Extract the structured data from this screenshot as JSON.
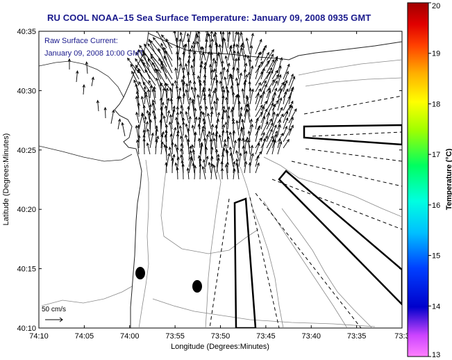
{
  "title": "RU COOL  NOAA–15  Sea Surface Temperature:  January 09, 2008 0935 GMT",
  "annotation": {
    "line1": "Raw Surface Current:",
    "line2": "January 09, 2008 10:00 GMT"
  },
  "scale_label": "50 cm/s",
  "chart_data": {
    "type": "map",
    "xlabel": "Longitude (Degrees:Minutes)",
    "ylabel": "Latitude (Degrees:Minutes)",
    "x_ticks": [
      "74:10",
      "74:05",
      "74:00",
      "73:55",
      "73:50",
      "73:45",
      "73:40",
      "73:35",
      "73:3"
    ],
    "y_ticks": [
      "40:10",
      "40:15",
      "40:20",
      "40:25",
      "40:30",
      "40:35"
    ],
    "x_range_minutes_west": [
      70,
      30
    ],
    "y_range_minutes_north": [
      10,
      35
    ],
    "colorbar": {
      "label": "Temperature (°C)",
      "ticks": [
        "20",
        "19",
        "18",
        "17",
        "16",
        "15",
        "14",
        "13"
      ],
      "range": [
        13,
        20
      ]
    },
    "current_field": {
      "description_visible": false,
      "dominant_direction": "north",
      "region_lon_minutes_west": [
        65,
        45
      ],
      "region_lat_minutes_north": [
        23,
        34
      ]
    }
  }
}
